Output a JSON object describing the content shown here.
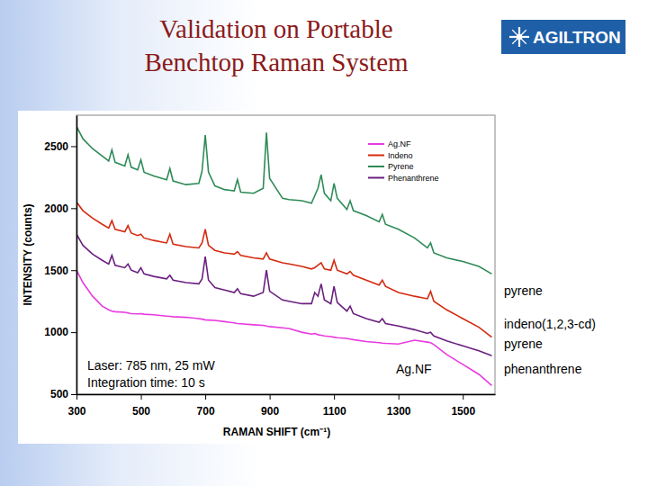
{
  "logo": "AGILTRON",
  "chart_data": {
    "type": "line",
    "title": "Validation on Portable Benchtop Raman System",
    "x_label": "RAMAN SHIFT (cm⁻¹)",
    "y_label": "INTENSITY (counts)",
    "xlim": [
      300,
      1600
    ],
    "ylim": [
      500,
      2750
    ],
    "xticks": [
      300,
      500,
      700,
      900,
      1100,
      1300,
      1500
    ],
    "yticks": [
      500,
      1000,
      1500,
      2000,
      2500
    ],
    "grid": false,
    "legend": "upper right",
    "x": [
      300,
      320,
      350,
      380,
      400,
      410,
      420,
      450,
      460,
      470,
      490,
      500,
      510,
      540,
      580,
      590,
      600,
      640,
      680,
      690,
      700,
      710,
      730,
      760,
      790,
      800,
      810,
      850,
      880,
      890,
      900,
      940,
      960,
      1000,
      1030,
      1040,
      1050,
      1060,
      1070,
      1090,
      1100,
      1110,
      1140,
      1150,
      1160,
      1200,
      1240,
      1250,
      1260,
      1300,
      1350,
      1390,
      1400,
      1410,
      1450,
      1500,
      1550,
      1590
    ],
    "series": [
      {
        "name": "Ag.NF",
        "color": "#e83ae0",
        "values": [
          1500,
          1400,
          1290,
          1210,
          1180,
          1170,
          1165,
          1160,
          1155,
          1150,
          1148,
          1150,
          1145,
          1140,
          1130,
          1128,
          1125,
          1120,
          1110,
          1105,
          1100,
          1098,
          1095,
          1085,
          1075,
          1070,
          1068,
          1060,
          1055,
          1050,
          1045,
          1035,
          1030,
          1000,
          985,
          990,
          980,
          975,
          970,
          965,
          960,
          955,
          950,
          945,
          940,
          925,
          915,
          912,
          910,
          905,
          935,
          920,
          915,
          900,
          820,
          740,
          660,
          570
        ]
      },
      {
        "name": "Indeno",
        "color": "#d42a0f",
        "values": [
          2050,
          1980,
          1920,
          1870,
          1840,
          1900,
          1830,
          1810,
          1860,
          1800,
          1780,
          1790,
          1760,
          1740,
          1720,
          1790,
          1710,
          1690,
          1680,
          1720,
          1830,
          1700,
          1660,
          1640,
          1630,
          1650,
          1620,
          1600,
          1590,
          1640,
          1590,
          1560,
          1550,
          1530,
          1510,
          1520,
          1540,
          1560,
          1510,
          1500,
          1580,
          1500,
          1470,
          1490,
          1460,
          1420,
          1380,
          1420,
          1370,
          1320,
          1290,
          1270,
          1330,
          1250,
          1180,
          1110,
          1040,
          960
        ]
      },
      {
        "name": "Pyrene",
        "color": "#2e8b57",
        "values": [
          2660,
          2560,
          2480,
          2420,
          2380,
          2470,
          2370,
          2340,
          2430,
          2330,
          2310,
          2390,
          2290,
          2260,
          2230,
          2320,
          2220,
          2190,
          2200,
          2300,
          2590,
          2290,
          2180,
          2150,
          2140,
          2230,
          2130,
          2120,
          2160,
          2610,
          2240,
          2080,
          2070,
          2060,
          2040,
          2100,
          2160,
          2270,
          2120,
          2060,
          2200,
          2080,
          1990,
          2060,
          1980,
          1940,
          1890,
          1950,
          1870,
          1830,
          1760,
          1680,
          1720,
          1640,
          1600,
          1570,
          1530,
          1470
        ]
      },
      {
        "name": "Phenanthrene",
        "color": "#6b1f7f",
        "values": [
          1790,
          1700,
          1630,
          1580,
          1550,
          1620,
          1540,
          1520,
          1550,
          1500,
          1480,
          1520,
          1470,
          1450,
          1430,
          1460,
          1420,
          1400,
          1390,
          1430,
          1610,
          1420,
          1360,
          1340,
          1320,
          1350,
          1310,
          1290,
          1320,
          1500,
          1330,
          1260,
          1250,
          1230,
          1230,
          1320,
          1290,
          1390,
          1260,
          1230,
          1370,
          1240,
          1170,
          1210,
          1150,
          1110,
          1080,
          1110,
          1070,
          1050,
          1020,
          990,
          1000,
          970,
          930,
          890,
          850,
          810
        ]
      }
    ],
    "annotations": [
      {
        "text": "pyrene"
      },
      {
        "text": "indeno(1,2,3-cd) pyrene"
      },
      {
        "text": "Laser: 785 nm, 25 mW"
      },
      {
        "text": "Integration time: 10 s"
      },
      {
        "text": "Ag.NF"
      },
      {
        "text": "phenanthrene"
      }
    ]
  }
}
